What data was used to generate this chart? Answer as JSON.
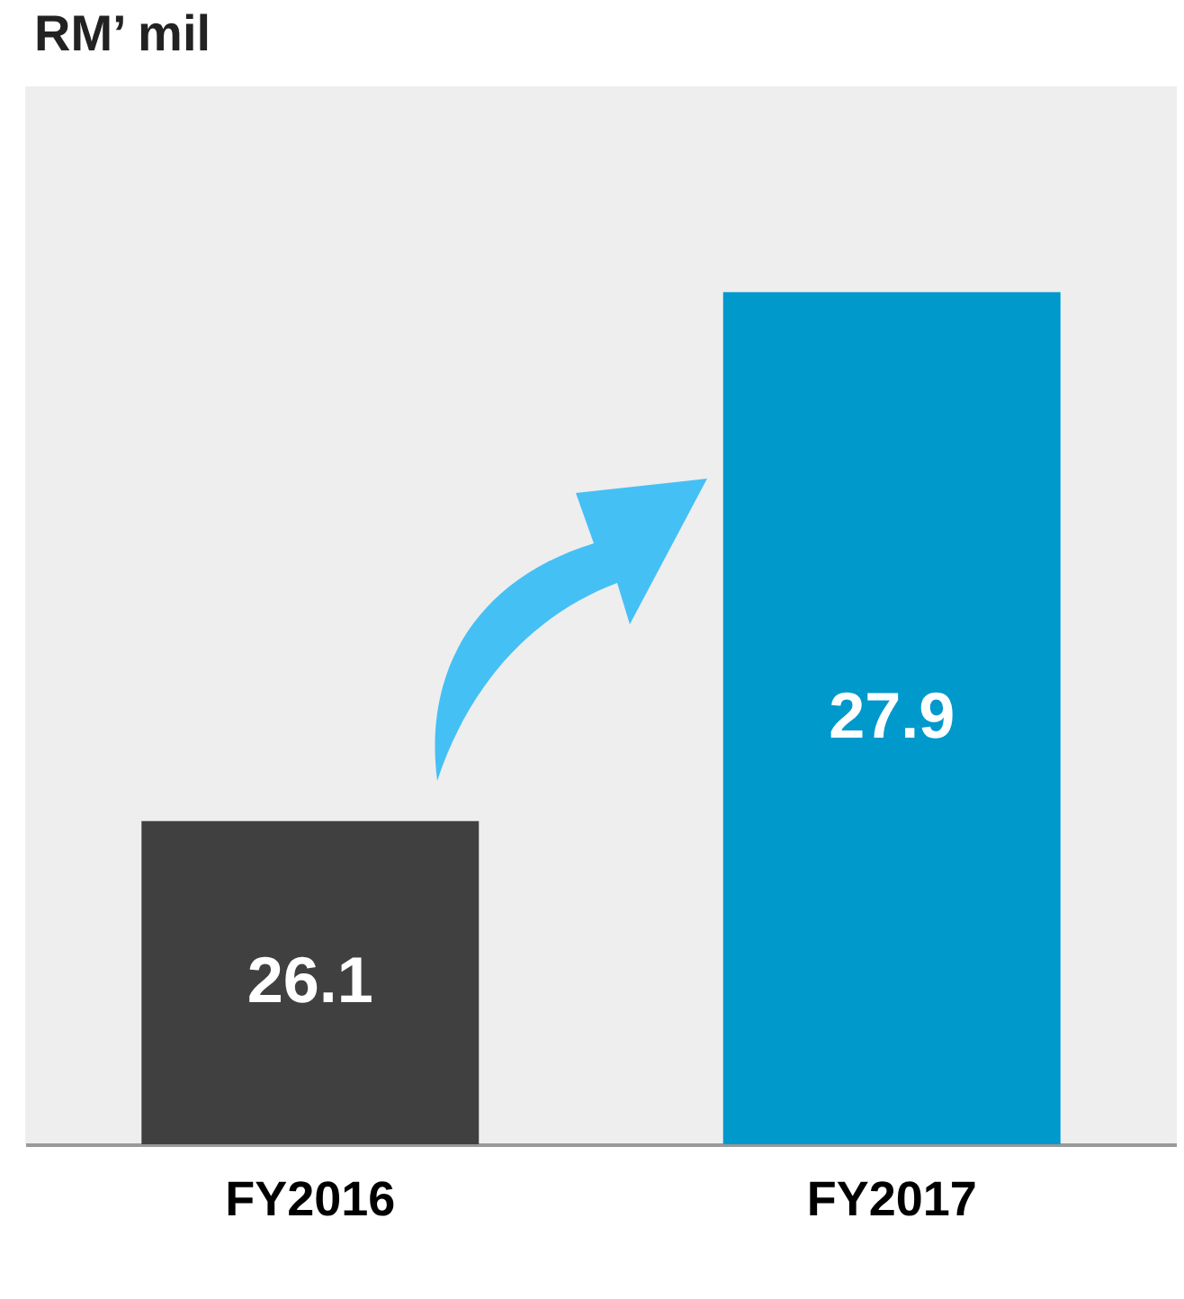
{
  "chart_data": {
    "type": "bar",
    "title": "RM’ mil",
    "categories": [
      "FY2016",
      "FY2017"
    ],
    "values": [
      26.1,
      27.9
    ],
    "colors": [
      "#404040",
      "#0099cc"
    ],
    "ylim": [
      25,
      28.6
    ],
    "data_labels": true,
    "tick_labels": "x"
  }
}
